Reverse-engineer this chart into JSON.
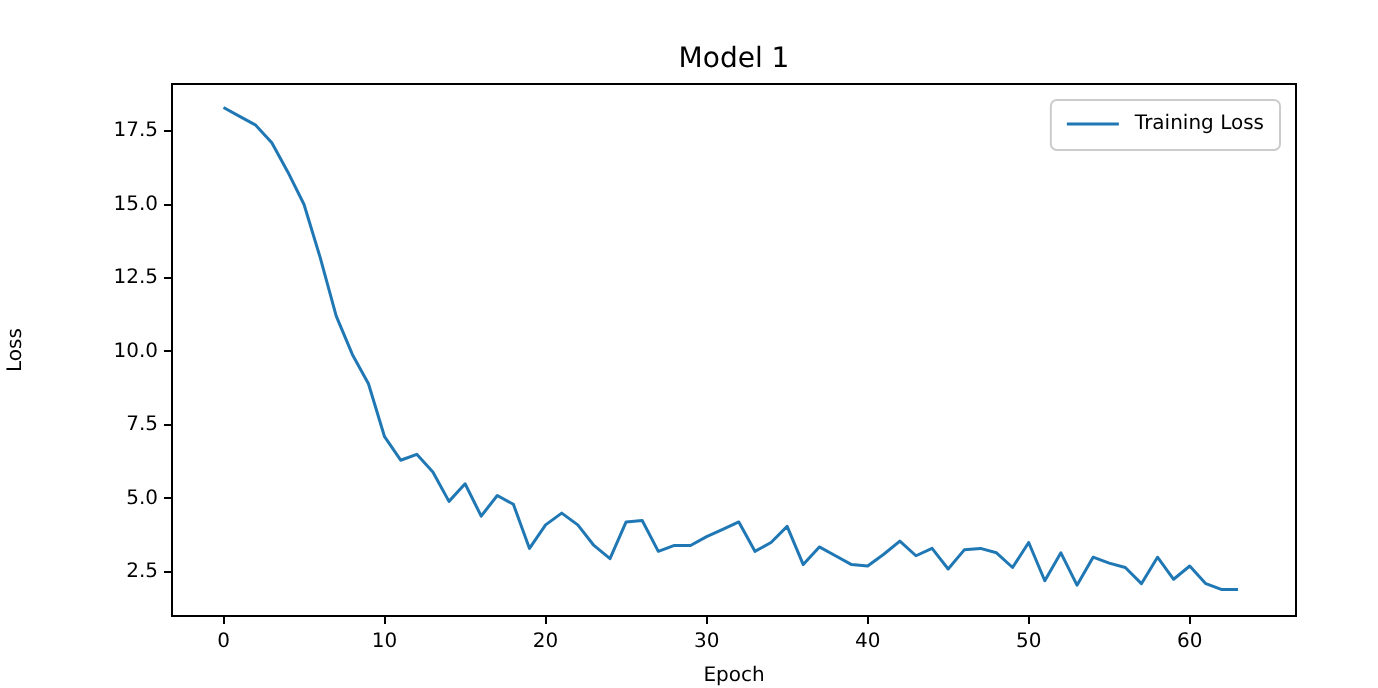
{
  "chart_data": {
    "type": "line",
    "title": "Model 1",
    "xlabel": "Epoch",
    "ylabel": "Loss",
    "x": [
      0,
      1,
      2,
      3,
      4,
      5,
      6,
      7,
      8,
      9,
      10,
      11,
      12,
      13,
      14,
      15,
      16,
      17,
      18,
      19,
      20,
      21,
      22,
      23,
      24,
      25,
      26,
      27,
      28,
      29,
      30,
      31,
      32,
      33,
      34,
      35,
      36,
      37,
      38,
      39,
      40,
      41,
      42,
      43,
      44,
      45,
      46,
      47,
      48,
      49,
      50,
      51,
      52,
      53,
      54,
      55,
      56,
      57,
      58,
      59,
      60,
      61,
      62,
      63
    ],
    "series": [
      {
        "name": "Training Loss",
        "color": "#1f77b4",
        "values": [
          18.3,
          18.0,
          17.7,
          17.1,
          16.1,
          15.0,
          13.2,
          11.2,
          9.9,
          8.9,
          7.1,
          6.3,
          6.5,
          5.9,
          4.9,
          5.5,
          4.4,
          5.1,
          4.8,
          3.3,
          4.1,
          4.5,
          4.1,
          3.4,
          2.95,
          4.2,
          4.25,
          3.2,
          3.4,
          3.4,
          3.7,
          3.95,
          4.2,
          3.2,
          3.5,
          4.05,
          2.75,
          3.35,
          3.05,
          2.75,
          2.7,
          3.1,
          3.55,
          3.05,
          3.3,
          2.6,
          3.25,
          3.3,
          3.15,
          2.65,
          3.5,
          2.2,
          3.15,
          2.05,
          3.0,
          2.8,
          2.65,
          2.1,
          3.0,
          2.25,
          2.7,
          2.1,
          1.9,
          1.9
        ]
      }
    ],
    "xlim": [
      -3.2,
      66.6
    ],
    "xticks": [
      0,
      10,
      20,
      30,
      40,
      50,
      60
    ],
    "ylim": [
      1.0,
      19.1
    ],
    "yticks": [
      {
        "value": 2.5,
        "label": "2.5"
      },
      {
        "value": 5,
        "label": "5.0"
      },
      {
        "value": 7.5,
        "label": "7.5"
      },
      {
        "value": 10,
        "label": "10.0"
      },
      {
        "value": 12.5,
        "label": "12.5"
      },
      {
        "value": 15,
        "label": "15.0"
      },
      {
        "value": 17.5,
        "label": "17.5"
      }
    ],
    "grid": false,
    "legend": "top right",
    "marker": "none",
    "line_style": "solid"
  }
}
